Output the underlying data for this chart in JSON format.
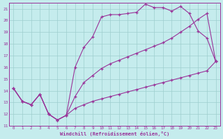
{
  "xlabel": "Windchill (Refroidissement éolien,°C)",
  "xlim": [
    -0.5,
    23.5
  ],
  "ylim": [
    11,
    21.5
  ],
  "bg_color": "#c5eced",
  "grid_color": "#9ecece",
  "line_color": "#993399",
  "line1_x": [
    0,
    1,
    2,
    3,
    4,
    5,
    6,
    7,
    8,
    9,
    10,
    11,
    12,
    13,
    14,
    15,
    16,
    17,
    18,
    19,
    20,
    21,
    22,
    23
  ],
  "line1_y": [
    14.2,
    13.1,
    12.8,
    13.7,
    12.0,
    11.5,
    11.9,
    16.0,
    17.7,
    18.6,
    20.3,
    20.5,
    20.5,
    20.6,
    20.7,
    21.4,
    21.1,
    21.1,
    20.8,
    21.2,
    20.6,
    19.1,
    18.5,
    16.5
  ],
  "line2_x": [
    0,
    1,
    2,
    3,
    4,
    5,
    6,
    7,
    8,
    9,
    10,
    11,
    12,
    13,
    14,
    15,
    16,
    17,
    18,
    19,
    20,
    21,
    22,
    23
  ],
  "line2_y": [
    14.2,
    13.1,
    12.8,
    13.7,
    12.0,
    11.5,
    11.9,
    13.5,
    14.7,
    15.3,
    15.9,
    16.3,
    16.6,
    16.9,
    17.2,
    17.5,
    17.8,
    18.1,
    18.5,
    19.0,
    19.5,
    20.1,
    20.6,
    16.5
  ],
  "line3_x": [
    0,
    1,
    2,
    3,
    4,
    5,
    6,
    7,
    8,
    9,
    10,
    11,
    12,
    13,
    14,
    15,
    16,
    17,
    18,
    19,
    20,
    21,
    22,
    23
  ],
  "line3_y": [
    14.2,
    13.1,
    12.8,
    13.7,
    12.0,
    11.5,
    11.9,
    12.5,
    12.8,
    13.1,
    13.3,
    13.5,
    13.7,
    13.9,
    14.1,
    14.3,
    14.5,
    14.7,
    14.9,
    15.1,
    15.3,
    15.5,
    15.7,
    16.5
  ]
}
